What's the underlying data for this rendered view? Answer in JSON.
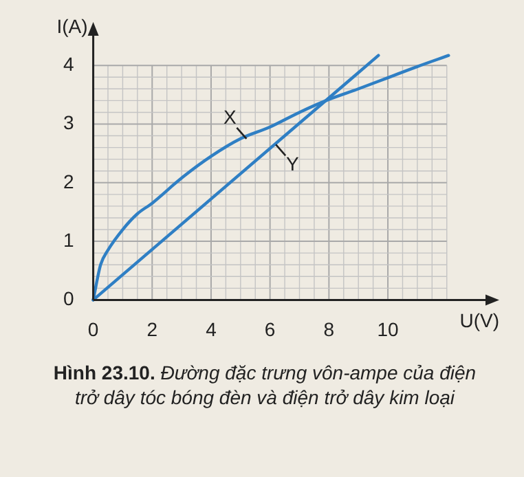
{
  "chart_data": {
    "type": "line",
    "xlabel": "U(V)",
    "ylabel": "I(A)",
    "xlim": [
      0,
      13.5
    ],
    "ylim": [
      0,
      4.6
    ],
    "xticks": [
      0,
      {
        "value": 0.5,
        "label": null
      },
      {
        "value": 1,
        "label": null
      },
      {
        "value": 1.5,
        "label": null
      },
      2,
      {
        "value": 2.5,
        "label": null
      },
      {
        "value": 3,
        "label": null
      },
      {
        "value": 3.5,
        "label": null
      },
      4,
      {
        "value": 4.5,
        "label": null
      },
      {
        "value": 5,
        "label": null
      },
      {
        "value": 5.5,
        "label": null
      },
      6,
      {
        "value": 6.5,
        "label": null
      },
      {
        "value": 7,
        "label": null
      },
      {
        "value": 7.5,
        "label": null
      },
      8,
      {
        "value": 8.5,
        "label": null
      },
      {
        "value": 9,
        "label": null
      },
      {
        "value": 9.5,
        "label": null
      },
      10,
      {
        "value": 10.5,
        "label": null
      },
      {
        "value": 11,
        "label": null
      },
      {
        "value": 11.5,
        "label": null
      },
      {
        "value": 12,
        "label": null
      }
    ],
    "yticks": [
      0,
      {
        "value": 0.2,
        "label": null
      },
      {
        "value": 0.4,
        "label": null
      },
      {
        "value": 0.6,
        "label": null
      },
      {
        "value": 0.8,
        "label": null
      },
      1,
      {
        "value": 1.2,
        "label": null
      },
      {
        "value": 1.4,
        "label": null
      },
      {
        "value": 1.6,
        "label": null
      },
      {
        "value": 1.8,
        "label": null
      },
      2,
      {
        "value": 2.2,
        "label": null
      },
      {
        "value": 2.4,
        "label": null
      },
      {
        "value": 2.6,
        "label": null
      },
      {
        "value": 2.8,
        "label": null
      },
      3,
      {
        "value": 3.2,
        "label": null
      },
      {
        "value": 3.4,
        "label": null
      },
      {
        "value": 3.6,
        "label": null
      },
      {
        "value": 3.8,
        "label": null
      },
      4
    ],
    "grid": true,
    "marker": "none",
    "line_style": "solid",
    "series": [
      {
        "color": "#2f7fc4",
        "x": [
          0,
          0.25,
          0.5,
          1,
          1.5,
          2,
          3,
          4,
          5,
          6,
          7,
          8,
          9,
          10,
          11,
          12.06
        ],
        "values": [
          0,
          0.6,
          0.85,
          1.2,
          1.47,
          1.65,
          2.08,
          2.45,
          2.75,
          2.95,
          3.2,
          3.42,
          3.6,
          3.79,
          3.98,
          4.17
        ]
      },
      {
        "color": "#2f7fc4",
        "x": [
          0,
          9.68
        ],
        "values": [
          0,
          4.17
        ]
      }
    ],
    "annotations": [
      {
        "text": "X",
        "x": 5.2,
        "y": 2.75
      },
      {
        "text": "Y",
        "x": 6.2,
        "y": 2.65
      },
      "Hình 23.10.",
      "Đường đặc trưng vôn-ampe của điện trở dây tóc bóng đèn và điện trở dây kim loại"
    ]
  }
}
